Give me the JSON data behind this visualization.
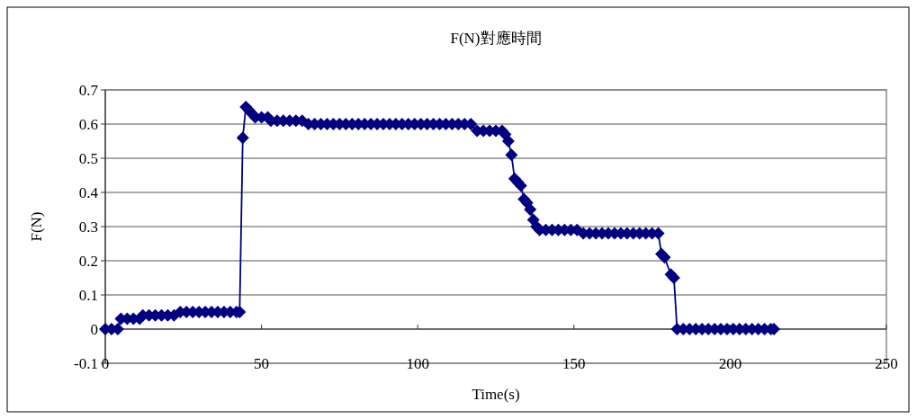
{
  "chart_data": {
    "type": "line",
    "title": "F(N)對應時間",
    "xlabel": "Time(s)",
    "ylabel": "F(N)",
    "x": [
      0,
      2,
      4,
      5,
      7,
      9,
      11,
      12,
      14,
      16,
      18,
      20,
      22,
      24,
      26,
      28,
      30,
      32,
      34,
      36,
      38,
      40,
      42,
      43,
      44,
      45,
      46,
      47,
      48,
      50,
      52,
      53,
      55,
      57,
      59,
      61,
      63,
      65,
      67,
      69,
      71,
      73,
      75,
      77,
      79,
      81,
      83,
      85,
      87,
      89,
      91,
      93,
      95,
      97,
      99,
      101,
      103,
      105,
      107,
      109,
      111,
      113,
      115,
      117,
      119,
      121,
      123,
      125,
      127,
      128,
      129,
      130,
      131,
      132,
      133,
      134,
      135,
      136,
      137,
      138,
      139,
      141,
      143,
      145,
      147,
      149,
      151,
      153,
      155,
      157,
      159,
      161,
      163,
      165,
      167,
      169,
      171,
      173,
      175,
      177,
      178,
      179,
      181,
      182,
      183,
      185,
      187,
      189,
      191,
      193,
      195,
      197,
      199,
      201,
      203,
      205,
      207,
      209,
      211,
      213,
      214
    ],
    "series": [
      {
        "color": "#000080",
        "values": [
          0,
          0,
          0,
          0.03,
          0.03,
          0.03,
          0.03,
          0.04,
          0.04,
          0.04,
          0.04,
          0.04,
          0.04,
          0.05,
          0.05,
          0.05,
          0.05,
          0.05,
          0.05,
          0.05,
          0.05,
          0.05,
          0.05,
          0.05,
          0.56,
          0.65,
          0.64,
          0.63,
          0.62,
          0.62,
          0.62,
          0.61,
          0.61,
          0.61,
          0.61,
          0.61,
          0.61,
          0.6,
          0.6,
          0.6,
          0.6,
          0.6,
          0.6,
          0.6,
          0.6,
          0.6,
          0.6,
          0.6,
          0.6,
          0.6,
          0.6,
          0.6,
          0.6,
          0.6,
          0.6,
          0.6,
          0.6,
          0.6,
          0.6,
          0.6,
          0.6,
          0.6,
          0.6,
          0.6,
          0.58,
          0.58,
          0.58,
          0.58,
          0.58,
          0.57,
          0.55,
          0.51,
          0.44,
          0.43,
          0.42,
          0.38,
          0.37,
          0.35,
          0.32,
          0.3,
          0.29,
          0.29,
          0.29,
          0.29,
          0.29,
          0.29,
          0.29,
          0.28,
          0.28,
          0.28,
          0.28,
          0.28,
          0.28,
          0.28,
          0.28,
          0.28,
          0.28,
          0.28,
          0.28,
          0.28,
          0.22,
          0.21,
          0.16,
          0.15,
          0,
          0,
          0,
          0,
          0,
          0,
          0,
          0,
          0,
          0,
          0,
          0,
          0,
          0,
          0,
          0,
          0
        ]
      }
    ],
    "xlim": [
      0,
      250
    ],
    "ylim": [
      -0.1,
      0.7
    ],
    "xticks": [
      0,
      50,
      100,
      150,
      200,
      250
    ],
    "yticks": [
      -0.1,
      0,
      0.1,
      0.2,
      0.3,
      0.4,
      0.5,
      0.6,
      0.7
    ],
    "grid": "y",
    "marker": "diamond",
    "line_style": "solid"
  }
}
